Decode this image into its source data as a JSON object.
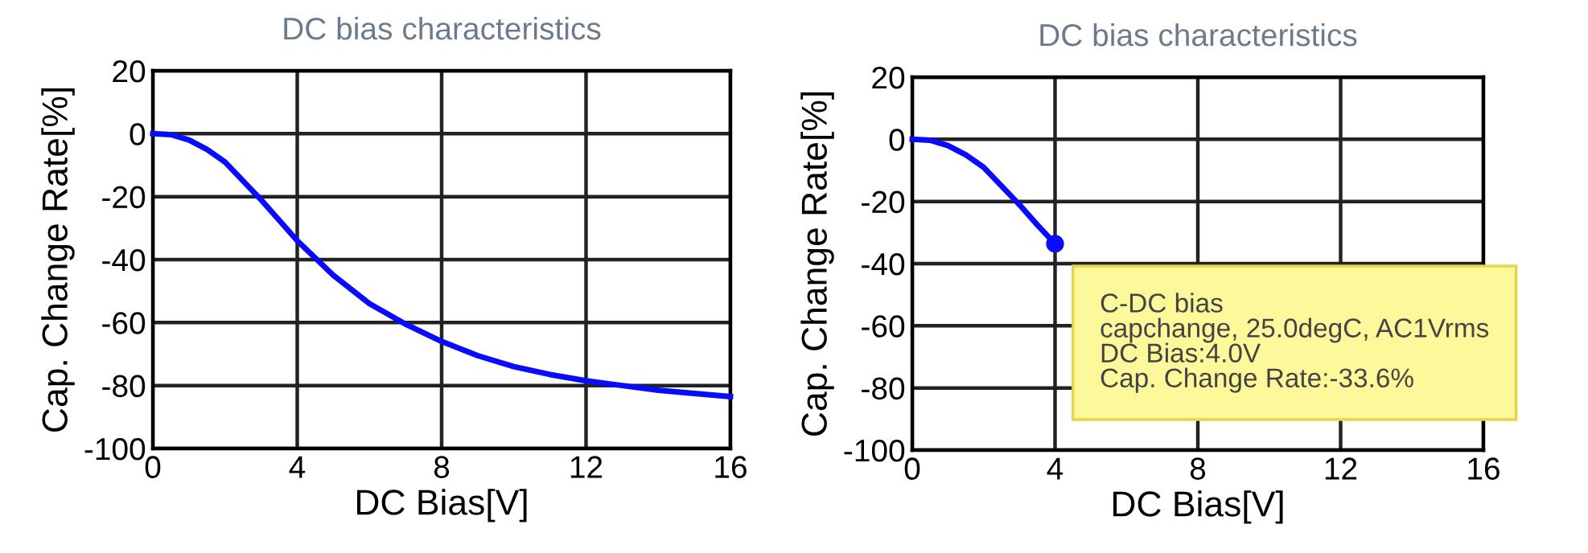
{
  "chart_data": [
    {
      "type": "line",
      "title": "DC bias characteristics",
      "xlabel": "DC Bias[V]",
      "ylabel": "Cap. Change Rate[%]",
      "x": [
        0,
        0.5,
        1,
        1.5,
        2,
        2.5,
        3,
        3.5,
        4,
        5,
        6,
        7,
        8,
        9,
        10,
        11,
        12,
        13,
        14,
        15,
        16
      ],
      "series": [
        {
          "color": "#0a0aff",
          "values": [
            0,
            -0.3,
            -2,
            -5,
            -9,
            -15,
            -21,
            -27.5,
            -34,
            -45,
            -54,
            -60.5,
            -66,
            -70.5,
            -74,
            -76.5,
            -78.5,
            -80,
            -81.5,
            -82.5,
            -83.5
          ]
        }
      ],
      "xlim": [
        0,
        16
      ],
      "ylim": [
        -100,
        20
      ],
      "xticks": [
        0,
        4,
        8,
        12,
        16
      ],
      "yticks": [
        -100,
        -80,
        -60,
        -40,
        -20,
        0,
        20
      ],
      "grid": true,
      "marker": "none",
      "line_style": "solid"
    },
    {
      "type": "line",
      "title": "DC bias characteristics",
      "xlabel": "DC Bias[V]",
      "ylabel": "Cap. Change Rate[%]",
      "x": [
        0,
        0.5,
        1,
        1.5,
        2,
        2.5,
        3,
        3.5,
        4
      ],
      "series": [
        {
          "color": "#0a0aff",
          "values": [
            0,
            -0.3,
            -2,
            -5,
            -9,
            -15,
            -21,
            -27.5,
            -33.6
          ]
        }
      ],
      "annotations": [
        {
          "text": "C-DC bias\ncapchange, 25.0degC, AC1Vrms\nDC Bias:4.0V\nCap. Change Rate:-33.6%",
          "x": 4,
          "y": -33.6
        }
      ],
      "xlim": [
        0,
        16
      ],
      "ylim": [
        -100,
        20
      ],
      "xticks": [
        0,
        4,
        8,
        12,
        16
      ],
      "yticks": [
        -100,
        -80,
        -60,
        -40,
        -20,
        0,
        20
      ],
      "grid": true,
      "marker": "none",
      "line_style": "solid"
    }
  ]
}
